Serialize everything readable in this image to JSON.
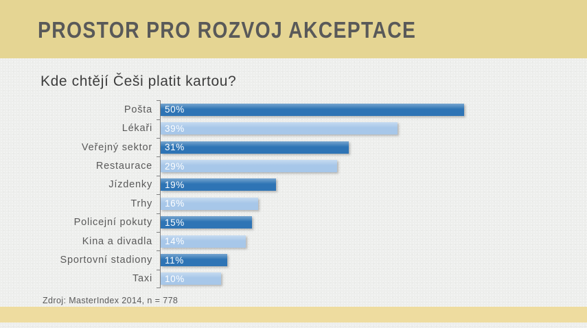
{
  "slide": {
    "title": "PROSTOR PRO ROZVOJ AKCEPTACE",
    "subtitle": "Kde chtějí Češi platit kartou?",
    "source": "Zdroj: MasterIndex 2014, n = 778"
  },
  "colors": {
    "header_band": "#E5D593",
    "footer_band": "#EEDC9F",
    "background": "#EDEEEC",
    "bar_dark": "#2E74B5",
    "bar_light": "#A7C7E9",
    "title_text": "#595959",
    "subtitle_text": "#3D3D3D",
    "category_text": "#595959",
    "value_text": "#FFFFFF",
    "axis": "#7F7F7F"
  },
  "chart_data": {
    "type": "bar",
    "orientation": "horizontal",
    "title": "Kde chtějí Češi platit kartou?",
    "categories": [
      "Pošta",
      "Lékaři",
      "Veřejný sektor",
      "Restaurace",
      "Jízdenky",
      "Trhy",
      "Policejní pokuty",
      "Kina a divadla",
      "Sportovní stadiony",
      "Taxi"
    ],
    "values": [
      50,
      39,
      31,
      29,
      19,
      16,
      15,
      14,
      11,
      10
    ],
    "value_labels": [
      "50%",
      "39%",
      "31%",
      "29%",
      "19%",
      "16%",
      "15%",
      "14%",
      "11%",
      "10%"
    ],
    "unit": "%",
    "xlim": [
      0,
      66
    ],
    "grid": false,
    "legend": false,
    "bar_color_pattern": [
      "#2E74B5",
      "#A7C7E9"
    ],
    "source": "Zdroj: MasterIndex 2014, n = 778"
  }
}
